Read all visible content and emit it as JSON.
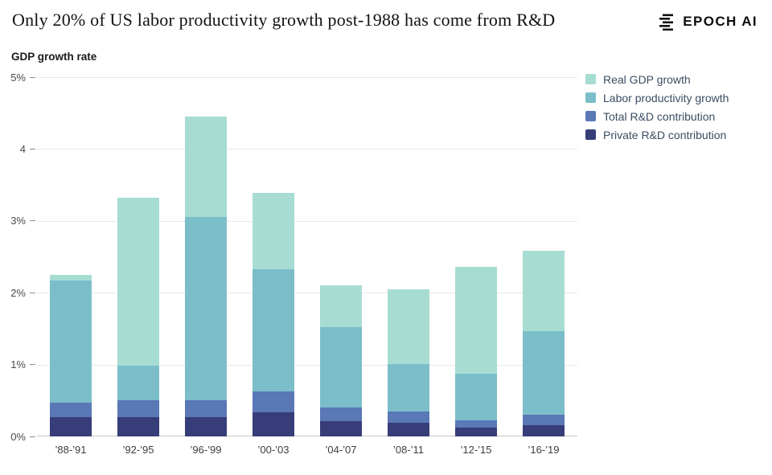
{
  "header": {
    "title": "Only 20% of US labor productivity growth post-1988 has come from R&D",
    "brand": "EPOCH AI"
  },
  "chart_data": {
    "type": "bar",
    "variant": "layered-overlay",
    "title": "GDP growth rate",
    "categories": [
      "’88-’91",
      "’92-’95",
      "’96-’99",
      "’00-’03",
      "’04-’07",
      "’08-’11",
      "’12-’15",
      "’16-’19"
    ],
    "series": [
      {
        "name": "Real GDP growth",
        "color": "#a7dcd3",
        "values": [
          2.25,
          3.32,
          4.45,
          3.39,
          2.1,
          2.05,
          2.36,
          2.58
        ]
      },
      {
        "name": "Labor productivity growth",
        "color": "#7bbeca",
        "values": [
          2.17,
          0.98,
          3.05,
          2.33,
          1.52,
          1.01,
          0.87,
          1.46
        ]
      },
      {
        "name": "Total R&D contribution",
        "color": "#5a77b6",
        "values": [
          0.47,
          0.5,
          0.5,
          0.63,
          0.4,
          0.35,
          0.22,
          0.3
        ]
      },
      {
        "name": "Private R&D contribution",
        "color": "#373d78",
        "values": [
          0.27,
          0.27,
          0.27,
          0.34,
          0.21,
          0.19,
          0.12,
          0.16
        ]
      }
    ],
    "ylim": [
      0,
      5
    ],
    "yticks": [
      {
        "value": 5,
        "label": "5%"
      },
      {
        "value": 4,
        "label": "4"
      },
      {
        "value": 3,
        "label": "3%"
      },
      {
        "value": 2,
        "label": "2%"
      },
      {
        "value": 1,
        "label": "1%"
      },
      {
        "value": 0,
        "label": "0%"
      }
    ],
    "grid": true,
    "legend_position": "top-right"
  }
}
